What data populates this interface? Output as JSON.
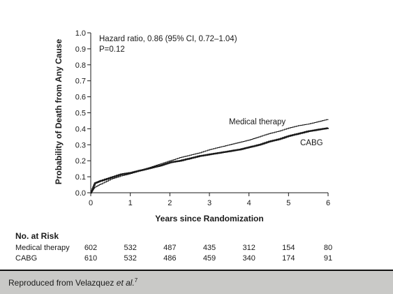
{
  "chart_data": {
    "type": "line",
    "title": "",
    "xlabel": "Years since Randomization",
    "ylabel": "Probability of Death from Any Cause",
    "xlim": [
      0,
      6
    ],
    "ylim": [
      0,
      1.0
    ],
    "x_ticks": [
      "0",
      "1",
      "2",
      "3",
      "4",
      "5",
      "6"
    ],
    "y_ticks": [
      "0.0",
      "0.1",
      "0.2",
      "0.3",
      "0.4",
      "0.5",
      "0.6",
      "0.7",
      "0.8",
      "0.9",
      "1.0"
    ],
    "grid": false,
    "annotations": {
      "hazard_ratio": "Hazard ratio, 0.86 (95% CI, 0.72–1.04)",
      "p_value": "P=0.12"
    },
    "series": [
      {
        "name": "Medical therapy",
        "color": "#1a1a1a",
        "style": "thin",
        "x": [
          0,
          0.1,
          0.25,
          0.5,
          0.75,
          1.0,
          1.25,
          1.5,
          1.75,
          2.0,
          2.25,
          2.5,
          2.75,
          3.0,
          3.25,
          3.5,
          3.75,
          4.0,
          4.25,
          4.5,
          4.75,
          5.0,
          5.25,
          5.5,
          5.75,
          6.0
        ],
        "y": [
          0,
          0.035,
          0.055,
          0.085,
          0.105,
          0.12,
          0.14,
          0.16,
          0.18,
          0.2,
          0.22,
          0.235,
          0.25,
          0.27,
          0.285,
          0.3,
          0.315,
          0.33,
          0.35,
          0.37,
          0.385,
          0.405,
          0.42,
          0.43,
          0.445,
          0.46
        ]
      },
      {
        "name": "CABG",
        "color": "#1a1a1a",
        "style": "thick",
        "x": [
          0,
          0.1,
          0.25,
          0.5,
          0.75,
          1.0,
          1.25,
          1.5,
          1.75,
          2.0,
          2.25,
          2.5,
          2.75,
          3.0,
          3.25,
          3.5,
          3.75,
          4.0,
          4.25,
          4.5,
          4.75,
          5.0,
          5.25,
          5.5,
          5.75,
          6.0
        ],
        "y": [
          0,
          0.06,
          0.075,
          0.095,
          0.115,
          0.125,
          0.14,
          0.155,
          0.17,
          0.19,
          0.2,
          0.215,
          0.23,
          0.24,
          0.25,
          0.26,
          0.27,
          0.285,
          0.3,
          0.32,
          0.335,
          0.355,
          0.37,
          0.385,
          0.395,
          0.405
        ]
      }
    ]
  },
  "risk_table": {
    "title": "No. at Risk",
    "rows": [
      {
        "label": "Medical therapy",
        "values": [
          "602",
          "532",
          "487",
          "435",
          "312",
          "154",
          "80"
        ]
      },
      {
        "label": "CABG",
        "values": [
          "610",
          "532",
          "486",
          "459",
          "340",
          "174",
          "91"
        ]
      }
    ]
  },
  "caption": {
    "prefix": "Reproduced from Velazquez ",
    "italic": "et al.",
    "superscript": "7"
  }
}
